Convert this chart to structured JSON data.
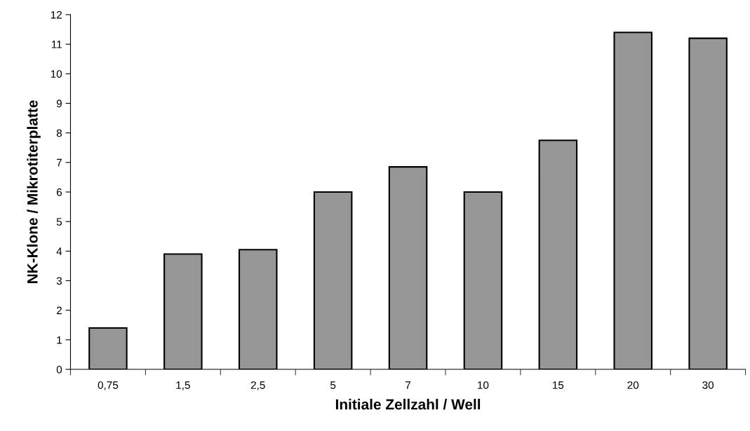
{
  "chart_data": {
    "type": "bar",
    "xlabel": "Initiale Zellzahl / Well",
    "ylabel": "NK-Klone / Mikrotiterplatte",
    "categories": [
      "0,75",
      "1,5",
      "2,5",
      "5",
      "7",
      "10",
      "15",
      "20",
      "30"
    ],
    "values": [
      1.4,
      3.9,
      4.05,
      6.0,
      6.85,
      6.0,
      7.75,
      11.4,
      11.2
    ],
    "color": "#969696",
    "ylim": [
      0,
      12
    ],
    "yticks": [
      0,
      1,
      2,
      3,
      4,
      5,
      6,
      7,
      8,
      9,
      10,
      11,
      12
    ],
    "grid": false
  }
}
